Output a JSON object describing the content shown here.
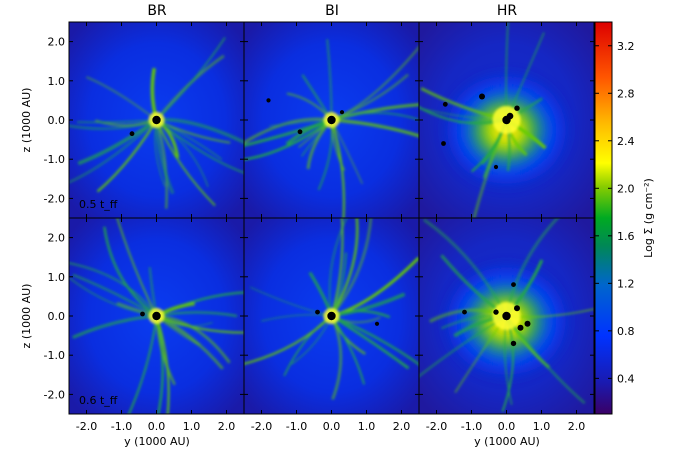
{
  "chart_data": {
    "type": "heatmap",
    "panel_titles": [
      "BR",
      "BI",
      "HR"
    ],
    "ylabel": "z (1000 AU)",
    "xlabel": "y (1000 AU)",
    "xlim": [
      -2.5,
      2.5
    ],
    "ylim": [
      -2.5,
      2.5
    ],
    "xticks": [
      -2.0,
      -1.0,
      0.0,
      1.0,
      2.0
    ],
    "yticks": [
      -2.0,
      -1.0,
      0.0,
      1.0,
      2.0
    ],
    "xtick_labels": [
      "-2.0",
      "-1.0",
      "0.0",
      "1.0",
      "2.0"
    ],
    "ytick_labels": [
      "-2.0",
      "-1.0",
      "0.0",
      "1.0",
      "2.0"
    ],
    "ytick_labels_top": [
      "-2.0",
      "-1.0",
      "0.0",
      "1.0",
      "2.0"
    ],
    "time_labels": [
      "0.5 t_ff",
      "0.6 t_ff"
    ],
    "colorbar": {
      "label": "Log Σ (g cm⁻²)",
      "range": [
        0.1,
        3.4
      ],
      "ticks": [
        0.4,
        0.8,
        1.2,
        1.6,
        2.0,
        2.4,
        2.8,
        3.2
      ],
      "tick_labels": [
        "0.4",
        "0.8",
        "1.2",
        "1.6",
        "2.0",
        "2.4",
        "2.8",
        "3.2"
      ],
      "colormap": [
        "#3a0066",
        "#1a1ab0",
        "#0033ff",
        "#0088aa",
        "#00aa33",
        "#88cc00",
        "#ffff00",
        "#ffaa00",
        "#ff4400",
        "#dd0000"
      ]
    },
    "grid": false,
    "panels": [
      {
        "row": 0,
        "col": 0,
        "name": "BR",
        "sinks": [
          [
            0.0,
            0.0,
            1.0
          ],
          [
            -0.7,
            -0.35,
            0.4
          ]
        ]
      },
      {
        "row": 0,
        "col": 1,
        "name": "BI",
        "sinks": [
          [
            0.0,
            0.0,
            1.0
          ],
          [
            -0.9,
            -0.3,
            0.4
          ],
          [
            0.3,
            0.2,
            0.3
          ],
          [
            -1.8,
            0.5,
            0.3
          ]
        ]
      },
      {
        "row": 0,
        "col": 2,
        "name": "HR",
        "sinks": [
          [
            0.0,
            0.0,
            1.0
          ],
          [
            -0.7,
            0.6,
            0.6
          ],
          [
            0.3,
            0.3,
            0.5
          ],
          [
            -1.75,
            0.4,
            0.4
          ],
          [
            -1.8,
            -0.6,
            0.4
          ],
          [
            0.1,
            0.1,
            0.7
          ],
          [
            -0.3,
            -1.2,
            0.3
          ]
        ]
      },
      {
        "row": 1,
        "col": 0,
        "name": "BR",
        "sinks": [
          [
            0.0,
            0.0,
            1.0
          ],
          [
            -0.4,
            0.05,
            0.4
          ]
        ]
      },
      {
        "row": 1,
        "col": 1,
        "name": "BI",
        "sinks": [
          [
            0.0,
            0.0,
            1.0
          ],
          [
            -0.4,
            0.1,
            0.4
          ],
          [
            1.3,
            -0.2,
            0.3
          ]
        ]
      },
      {
        "row": 1,
        "col": 2,
        "name": "HR",
        "sinks": [
          [
            0.0,
            0.0,
            1.0
          ],
          [
            0.3,
            0.2,
            0.6
          ],
          [
            0.4,
            -0.3,
            0.6
          ],
          [
            0.6,
            -0.2,
            0.6
          ],
          [
            0.2,
            -0.7,
            0.5
          ],
          [
            -0.3,
            0.1,
            0.5
          ],
          [
            0.2,
            0.8,
            0.4
          ],
          [
            -1.2,
            0.1,
            0.4
          ]
        ]
      }
    ]
  }
}
